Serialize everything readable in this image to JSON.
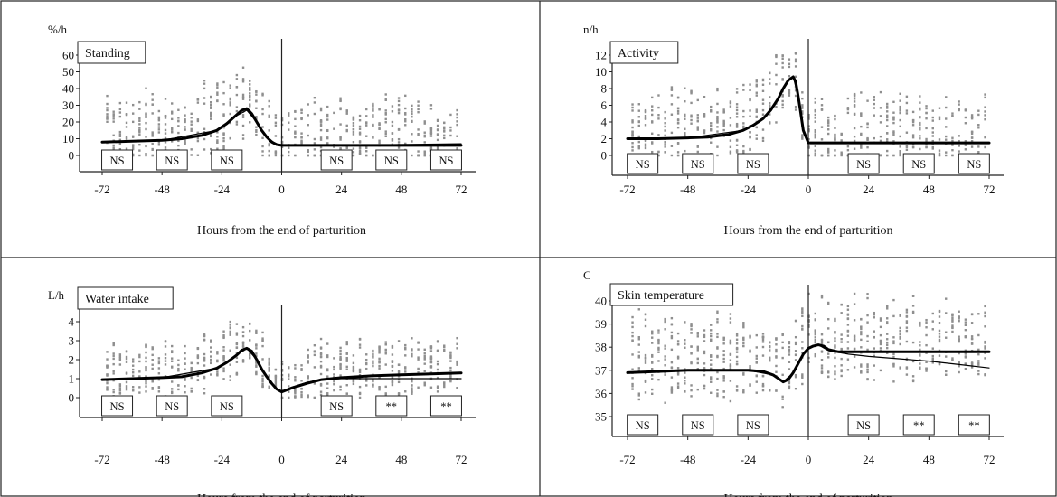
{
  "chart_data": [
    {
      "type": "line",
      "title": "Standing",
      "ylabel": "%/h",
      "xlabel": "Hours from the end of parturition",
      "ylim": [
        0,
        60
      ],
      "yticks": [
        0,
        10,
        20,
        30,
        40,
        50,
        60
      ],
      "xlim": [
        -72,
        72
      ],
      "xticks": [
        -72,
        -48,
        -24,
        0,
        24,
        48,
        72
      ],
      "series": [
        {
          "style": "thick",
          "x": [
            -72,
            -60,
            -48,
            -40,
            -32,
            -26,
            -22,
            -19,
            -16,
            -14,
            -12,
            -10,
            -8,
            -6,
            -4,
            -2,
            0,
            24,
            48,
            72
          ],
          "y": [
            8,
            8.5,
            9,
            10,
            12,
            15,
            19,
            23,
            27,
            28,
            25,
            20,
            15,
            11,
            8,
            6.5,
            6,
            6,
            6,
            6
          ]
        },
        {
          "style": "thin",
          "x": [
            -72,
            -48,
            -26,
            -19,
            -14,
            -10,
            -6,
            -2,
            0,
            24,
            48,
            72
          ],
          "y": [
            8,
            9,
            15,
            23,
            27,
            20,
            11,
            6.5,
            6,
            6,
            6.5,
            7
          ]
        }
      ],
      "significance": [
        {
          "x": -66,
          "label": "NS"
        },
        {
          "x": -44,
          "label": "NS"
        },
        {
          "x": -22,
          "label": "NS"
        },
        {
          "x": 22,
          "label": "NS"
        },
        {
          "x": 44,
          "label": "NS"
        },
        {
          "x": 66,
          "label": "NS"
        }
      ]
    },
    {
      "type": "line",
      "title": "Activity",
      "ylabel": "n/h",
      "xlabel": "Hours from the end of parturition",
      "ylim": [
        0,
        12
      ],
      "yticks": [
        0,
        2,
        4,
        6,
        8,
        10,
        12
      ],
      "xlim": [
        -72,
        72
      ],
      "xticks": [
        -72,
        -48,
        -24,
        0,
        24,
        48,
        72
      ],
      "series": [
        {
          "style": "thick",
          "x": [
            -72,
            -60,
            -48,
            -40,
            -32,
            -26,
            -22,
            -18,
            -15,
            -12,
            -10,
            -8,
            -6,
            -5,
            -4,
            -3,
            -2,
            0,
            24,
            48,
            72
          ],
          "y": [
            2,
            2,
            2.1,
            2.2,
            2.5,
            3,
            3.6,
            4.4,
            5.4,
            6.8,
            8,
            9,
            9.4,
            8.8,
            7,
            5,
            3,
            1.5,
            1.5,
            1.5,
            1.5
          ]
        },
        {
          "style": "thin",
          "x": [
            -72,
            -48,
            -26,
            -18,
            -12,
            -8,
            -6,
            -4,
            -2,
            0,
            24,
            48,
            72
          ],
          "y": [
            2,
            2.1,
            3,
            4.4,
            6.8,
            9,
            9.4,
            7,
            3,
            1.5,
            1.5,
            1.5,
            1.5
          ]
        }
      ],
      "significance": [
        {
          "x": -66,
          "label": "NS"
        },
        {
          "x": -44,
          "label": "NS"
        },
        {
          "x": -22,
          "label": "NS"
        },
        {
          "x": 22,
          "label": "NS"
        },
        {
          "x": 44,
          "label": "NS"
        },
        {
          "x": 66,
          "label": "NS"
        }
      ]
    },
    {
      "type": "line",
      "title": "Water intake",
      "ylabel": "L/h",
      "xlabel": "Hours from the end of parturition",
      "ylim": [
        0,
        4
      ],
      "yticks": [
        0,
        1,
        2,
        3,
        4
      ],
      "xlim": [
        -72,
        72
      ],
      "xticks": [
        -72,
        -48,
        -24,
        0,
        24,
        48,
        72
      ],
      "series": [
        {
          "style": "thick",
          "x": [
            -72,
            -60,
            -48,
            -40,
            -32,
            -26,
            -22,
            -18,
            -16,
            -14,
            -12,
            -10,
            -8,
            -6,
            -4,
            -2,
            0,
            4,
            10,
            16,
            24,
            36,
            48,
            60,
            72
          ],
          "y": [
            0.95,
            1,
            1.05,
            1.1,
            1.3,
            1.55,
            1.85,
            2.25,
            2.5,
            2.6,
            2.45,
            2,
            1.5,
            1.1,
            0.75,
            0.45,
            0.3,
            0.5,
            0.75,
            0.95,
            1.05,
            1.15,
            1.2,
            1.25,
            1.3
          ]
        },
        {
          "style": "thin",
          "x": [
            -72,
            -48,
            -26,
            -18,
            -14,
            -10,
            -6,
            -2,
            0,
            4,
            10,
            16,
            24,
            36,
            48,
            60,
            72
          ],
          "y": [
            0.95,
            1.05,
            1.55,
            2.25,
            2.6,
            2,
            1.1,
            0.45,
            0.3,
            0.55,
            0.8,
            0.95,
            1,
            1,
            1,
            1,
            1
          ]
        }
      ],
      "significance": [
        {
          "x": -66,
          "label": "NS"
        },
        {
          "x": -44,
          "label": "NS"
        },
        {
          "x": -22,
          "label": "NS"
        },
        {
          "x": 22,
          "label": "NS"
        },
        {
          "x": 44,
          "label": "**"
        },
        {
          "x": 66,
          "label": "**"
        }
      ]
    },
    {
      "type": "line",
      "title": "Skin temperature",
      "ylabel": "C",
      "xlabel": "Hours from the end of parturition",
      "ylim": [
        35,
        40
      ],
      "yticks": [
        35,
        36,
        37,
        38,
        39,
        40
      ],
      "xlim": [
        -72,
        72
      ],
      "xticks": [
        -72,
        -48,
        -24,
        0,
        24,
        48,
        72
      ],
      "series": [
        {
          "style": "thick",
          "x": [
            -72,
            -60,
            -48,
            -36,
            -24,
            -18,
            -14,
            -12,
            -10,
            -8,
            -6,
            -4,
            -2,
            0,
            2,
            4,
            6,
            8,
            12,
            24,
            36,
            48,
            60,
            72
          ],
          "y": [
            36.9,
            36.95,
            37,
            37,
            37,
            36.95,
            36.8,
            36.65,
            36.5,
            36.6,
            36.9,
            37.3,
            37.7,
            37.95,
            38.05,
            38.1,
            38.05,
            37.9,
            37.8,
            37.8,
            37.8,
            37.8,
            37.8,
            37.8
          ]
        },
        {
          "style": "thin",
          "x": [
            -72,
            -48,
            -24,
            -14,
            -10,
            -6,
            -2,
            0,
            4,
            8,
            16,
            24,
            36,
            48,
            60,
            72
          ],
          "y": [
            36.9,
            37,
            37,
            36.8,
            36.5,
            36.9,
            37.7,
            37.95,
            38.1,
            37.85,
            37.7,
            37.6,
            37.5,
            37.4,
            37.25,
            37.1
          ]
        }
      ],
      "significance": [
        {
          "x": -66,
          "label": "NS"
        },
        {
          "x": -44,
          "label": "NS"
        },
        {
          "x": -22,
          "label": "NS"
        },
        {
          "x": 22,
          "label": "NS"
        },
        {
          "x": 44,
          "label": "**"
        },
        {
          "x": 66,
          "label": "**"
        }
      ]
    }
  ]
}
